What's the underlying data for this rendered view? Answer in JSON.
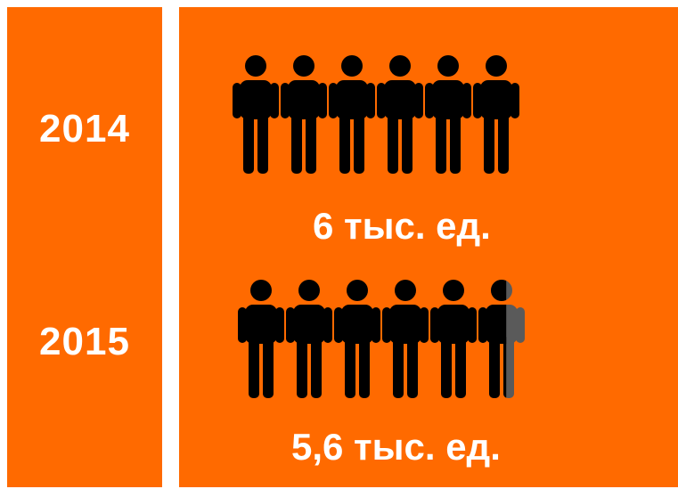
{
  "colors": {
    "background": "#ff6a00",
    "text": "#ffffff",
    "figure": "#000000",
    "figure_partial": "#5a5a5a"
  },
  "icon": "person-icon",
  "rows": [
    {
      "year": "2014",
      "amount_label": "6 тыс. ед."
    },
    {
      "year": "2015",
      "amount_label": "5,6 тыс. ед."
    }
  ],
  "chart_data": {
    "type": "bar",
    "categories": [
      "2014",
      "2015"
    ],
    "values": [
      6,
      5.6
    ],
    "data_labels": [
      "6 тыс. ед.",
      "5,6 тыс. ед."
    ],
    "units": "тыс. ед.",
    "icon": "person-icon",
    "icons_per_unit": 1,
    "title": "",
    "xlabel": "",
    "ylabel": ""
  }
}
